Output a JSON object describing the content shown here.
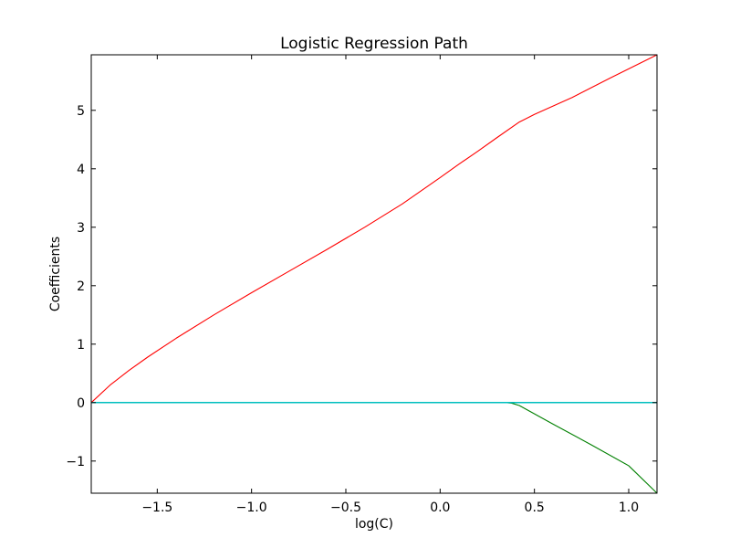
{
  "chart_data": {
    "type": "line",
    "title": "Logistic Regression Path",
    "xlabel": "log(C)",
    "ylabel": "Coefficients",
    "xlim": [
      -1.85,
      1.15
    ],
    "ylim": [
      -1.55,
      5.95
    ],
    "xticks": [
      {
        "value": -1.5,
        "label": "−1.5"
      },
      {
        "value": -1.0,
        "label": "−1.0"
      },
      {
        "value": -0.5,
        "label": "−0.5"
      },
      {
        "value": 0.0,
        "label": "0.0"
      },
      {
        "value": 0.5,
        "label": "0.5"
      },
      {
        "value": 1.0,
        "label": "1.0"
      }
    ],
    "yticks": [
      {
        "value": -1,
        "label": "−1"
      },
      {
        "value": 0,
        "label": "0"
      },
      {
        "value": 1,
        "label": "1"
      },
      {
        "value": 2,
        "label": "2"
      },
      {
        "value": 3,
        "label": "3"
      },
      {
        "value": 4,
        "label": "4"
      },
      {
        "value": 5,
        "label": "5"
      }
    ],
    "grid": false,
    "legend": "none",
    "series": [
      {
        "color": "#ff0000",
        "x": [
          -1.85,
          -1.75,
          -1.65,
          -1.55,
          -1.4,
          -1.2,
          -1.0,
          -0.8,
          -0.6,
          -0.4,
          -0.2,
          0.0,
          0.1,
          0.2,
          0.3,
          0.42,
          0.5,
          0.7,
          0.9,
          1.15
        ],
        "y": [
          0.0,
          0.3,
          0.55,
          0.78,
          1.1,
          1.5,
          1.88,
          2.25,
          2.62,
          3.0,
          3.4,
          3.85,
          4.08,
          4.3,
          4.53,
          4.8,
          4.93,
          5.22,
          5.55,
          5.95
        ]
      },
      {
        "color": "#008000",
        "x": [
          -1.85,
          0.35,
          0.38,
          0.42,
          0.6,
          0.8,
          1.0,
          1.15
        ],
        "y": [
          0.0,
          0.0,
          -0.01,
          -0.05,
          -0.37,
          -0.72,
          -1.08,
          -1.55
        ]
      },
      {
        "color": "#0000ff",
        "x": [
          -1.85,
          1.15
        ],
        "y": [
          0.0,
          0.0
        ]
      },
      {
        "color": "#00bfbf",
        "x": [
          -1.85,
          1.15
        ],
        "y": [
          0.0,
          0.0
        ]
      }
    ]
  }
}
